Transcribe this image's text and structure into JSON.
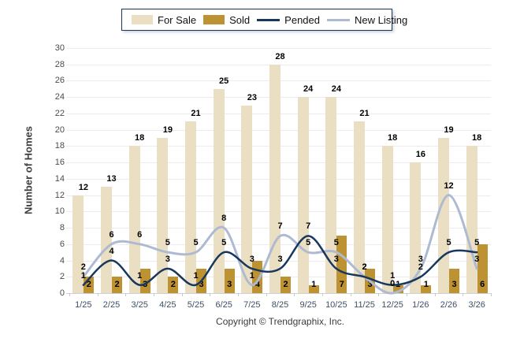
{
  "legend": {
    "items": [
      {
        "label": "For Sale",
        "type": "bar",
        "color": "#EBDFC3"
      },
      {
        "label": "Sold",
        "type": "bar",
        "color": "#BD9232"
      },
      {
        "label": "Pended",
        "type": "line",
        "color": "#17375E"
      },
      {
        "label": "New Listing",
        "type": "line",
        "color": "#AEBAD2"
      }
    ]
  },
  "chart_data": {
    "type": "mixed-bar-line",
    "categories": [
      "1/25",
      "2/25",
      "3/25",
      "4/25",
      "5/25",
      "6/25",
      "7/25",
      "8/25",
      "9/25",
      "10/25",
      "11/25",
      "12/25",
      "1/26",
      "2/26",
      "3/26"
    ],
    "series": [
      {
        "name": "For Sale",
        "type": "bar",
        "color": "#EBDFC3",
        "values": [
          12,
          13,
          18,
          19,
          21,
          25,
          23,
          28,
          24,
          24,
          21,
          18,
          16,
          19,
          18
        ]
      },
      {
        "name": "Sold",
        "type": "bar",
        "color": "#BD9232",
        "values": [
          2,
          2,
          3,
          2,
          3,
          3,
          4,
          2,
          1,
          7,
          3,
          1,
          1,
          3,
          6
        ]
      },
      {
        "name": "Pended",
        "type": "line",
        "color": "#17375E",
        "values": [
          1,
          4,
          1,
          3,
          1,
          5,
          3,
          3,
          7,
          3,
          2,
          1,
          2,
          5,
          5
        ]
      },
      {
        "name": "New Listing",
        "type": "line",
        "color": "#AEBAD2",
        "values": [
          2,
          6,
          6,
          5,
          5,
          8,
          1,
          7,
          5,
          5,
          2,
          0,
          3,
          12,
          3
        ]
      }
    ],
    "ylabel": "Number of Homes",
    "ylim": [
      0,
      30
    ],
    "ytick_step": 2,
    "grid": true,
    "legend_position": "top",
    "data_labels": true
  },
  "footer": {
    "copyright": "Copyright © Trendgraphix, Inc."
  }
}
